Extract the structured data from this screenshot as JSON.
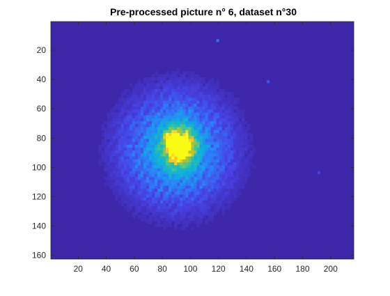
{
  "chart_data": {
    "type": "heatmap",
    "title": "Pre-processed picture n° 6, dataset n°30",
    "xlabel": "",
    "ylabel": "",
    "image_width": 216,
    "image_height": 162,
    "xlim": [
      0.5,
      216.5
    ],
    "ylim": [
      0.5,
      162.5
    ],
    "y_direction": "reverse",
    "xticks": [
      20,
      40,
      60,
      80,
      100,
      120,
      140,
      160,
      180,
      200
    ],
    "xtick_labels": [
      "20",
      "40",
      "60",
      "80",
      "100",
      "120",
      "140",
      "160",
      "180",
      "200"
    ],
    "yticks": [
      20,
      40,
      60,
      80,
      100,
      120,
      140,
      160
    ],
    "ytick_labels": [
      "20",
      "40",
      "60",
      "80",
      "100",
      "120",
      "140",
      "160"
    ],
    "colormap": "parula",
    "background_color": "#3e26a8",
    "grid": false,
    "legend": "none",
    "features": {
      "halo": {
        "center_x": 90,
        "center_y": 88,
        "radius_x": 60,
        "radius_y": 58,
        "peak_value": 0.45
      },
      "core": {
        "center_x": 92,
        "center_y": 86,
        "radius_x": 14,
        "radius_y": 16,
        "peak_value": 0.95
      },
      "hot_spots": [
        {
          "x": 89,
          "y": 84,
          "value": 1.0
        },
        {
          "x": 94,
          "y": 90,
          "value": 0.95
        },
        {
          "x": 86,
          "y": 79,
          "value": 0.85
        },
        {
          "x": 97,
          "y": 83,
          "value": 0.8
        }
      ],
      "noise_dots": [
        {
          "x": 119,
          "y": 13,
          "value": 0.25
        },
        {
          "x": 155,
          "y": 41,
          "value": 0.2
        },
        {
          "x": 191,
          "y": 103,
          "value": 0.15
        }
      ]
    }
  }
}
